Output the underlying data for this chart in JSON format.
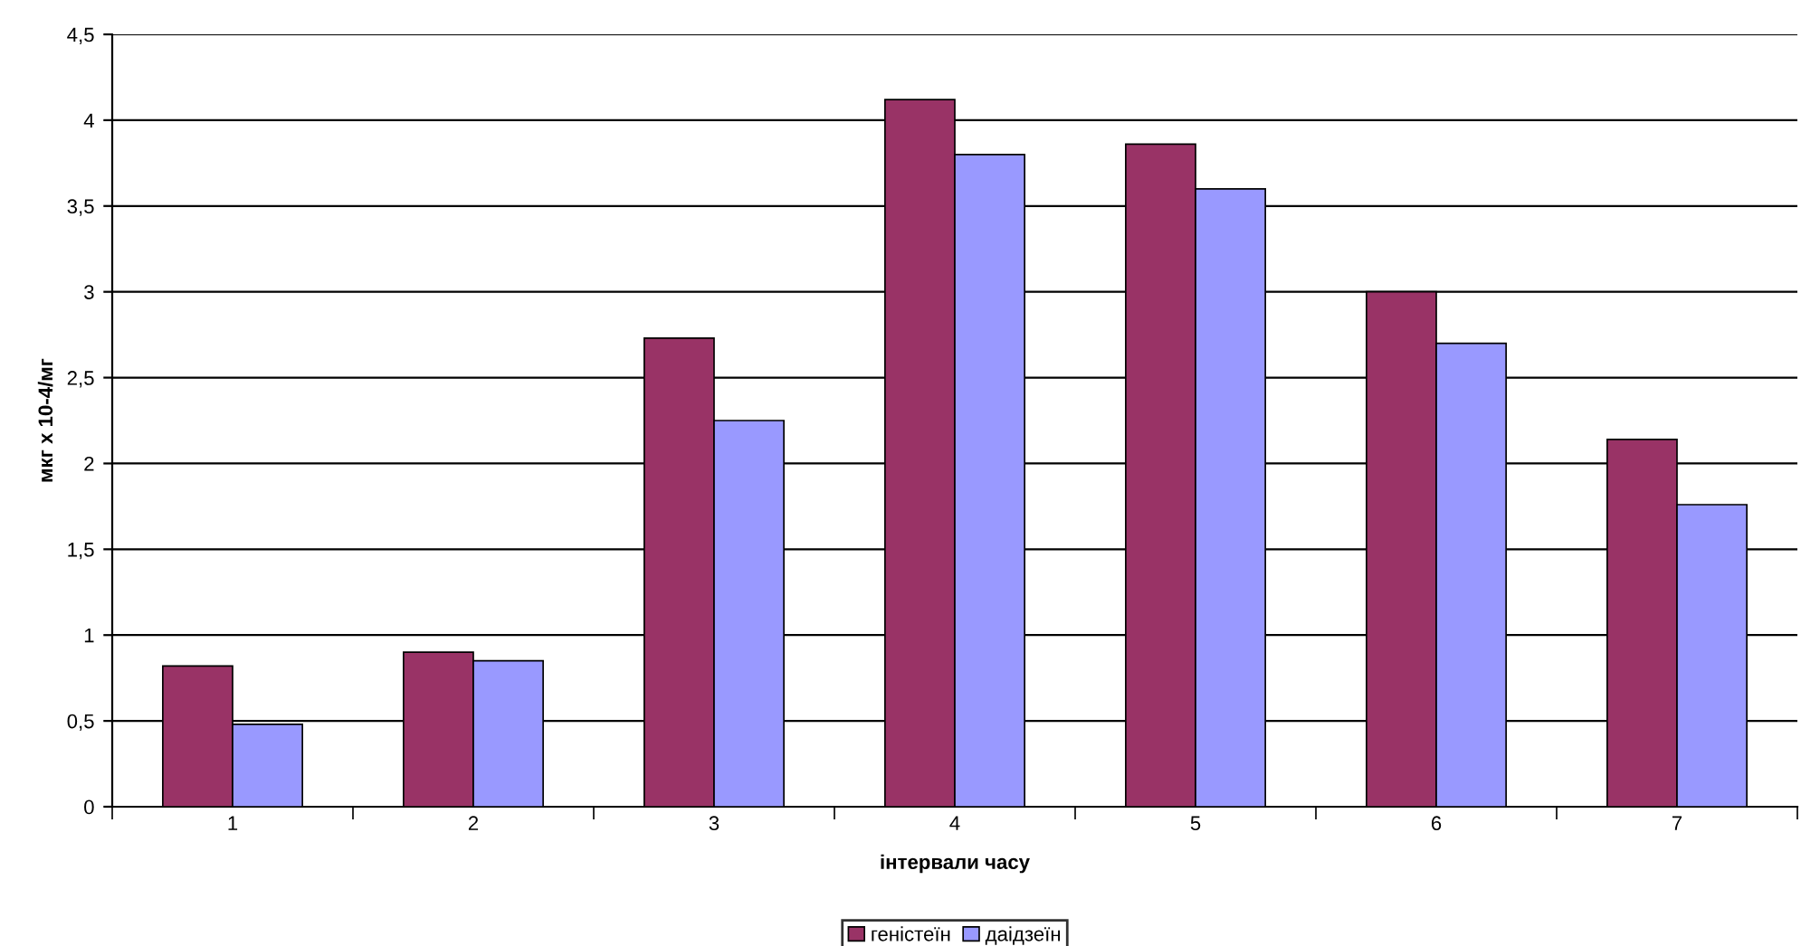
{
  "chart_data": {
    "type": "bar",
    "xlabel": "інтервали часу",
    "ylabel": "мкг x 10-4/мг",
    "categories": [
      "1",
      "2",
      "3",
      "4",
      "5",
      "6",
      "7"
    ],
    "series": [
      {
        "name": "геністеїн",
        "color": "#993366",
        "values": [
          0.82,
          0.9,
          2.73,
          4.12,
          3.86,
          3.0,
          2.14
        ]
      },
      {
        "name": "даідзеїн",
        "color": "#9999ff",
        "values": [
          0.48,
          0.85,
          2.25,
          3.8,
          3.6,
          2.7,
          1.76
        ]
      }
    ],
    "ylim": [
      0,
      4.5
    ],
    "yticks": [
      0,
      {
        "value": 0.5,
        "label": "0,5"
      },
      1,
      {
        "value": 1.5,
        "label": "1,5"
      },
      2,
      {
        "value": 2.5,
        "label": "2,5"
      },
      3,
      {
        "value": 3.5,
        "label": "3,5"
      },
      4,
      {
        "value": 4.5,
        "label": "4,5"
      }
    ],
    "grid": "y",
    "legend": "bottom"
  }
}
